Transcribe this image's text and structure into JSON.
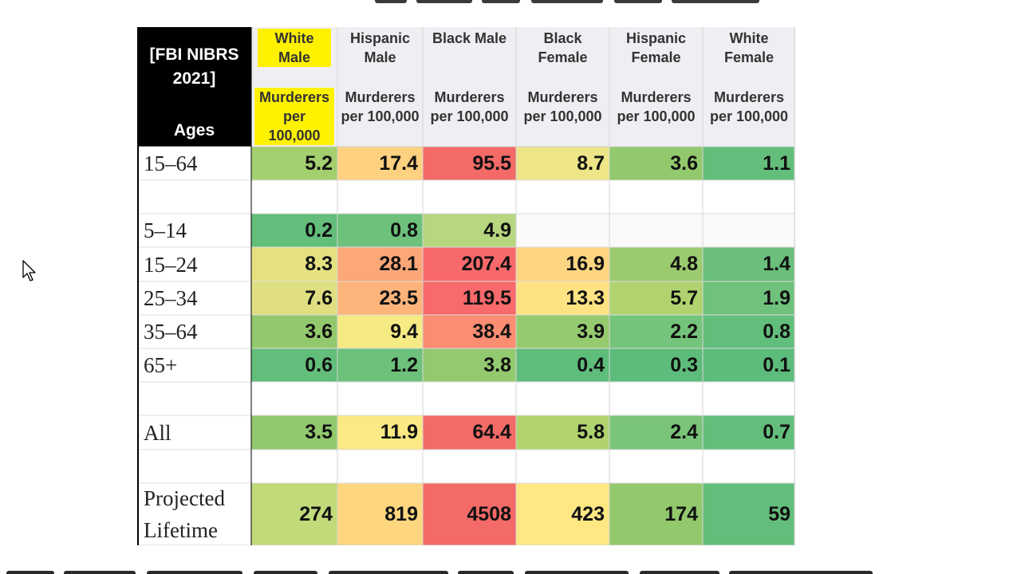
{
  "chart_data": {
    "type": "heatmap",
    "corner_label": "[FBI NIBRS 2021]",
    "row_header_label": "Ages",
    "columns": [
      {
        "group": "White Male",
        "metric": "Murderers per 100,000",
        "highlighted": true
      },
      {
        "group": "Hispanic Male",
        "metric": "Murderers per 100,000",
        "highlighted": false
      },
      {
        "group": "Black Male",
        "metric": "Murderers per 100,000",
        "highlighted": false
      },
      {
        "group": "Black Female",
        "metric": "Murderers per 100,000",
        "highlighted": false
      },
      {
        "group": "Hispanic Female",
        "metric": "Murderers per 100,000",
        "highlighted": false
      },
      {
        "group": "White Female",
        "metric": "Murderers per 100,000",
        "highlighted": false
      }
    ],
    "rows": [
      {
        "label": "15–64",
        "values": [
          "5.2",
          "17.4",
          "95.5",
          "8.7",
          "3.6",
          "1.1"
        ],
        "colors": [
          "#a3cf6f",
          "#fdd17f",
          "#f36a67",
          "#ede587",
          "#93c96d",
          "#63be7b"
        ]
      },
      {
        "label": "",
        "values": [],
        "colors": []
      },
      {
        "label": "5–14",
        "values": [
          "0.2",
          "0.8",
          "4.9"
        ],
        "colors": [
          "#63be7b",
          "#6dc17a",
          "#b6d77f"
        ]
      },
      {
        "label": "15–24",
        "values": [
          "8.3",
          "28.1",
          "207.4",
          "16.9",
          "4.8",
          "1.4"
        ],
        "colors": [
          "#e5e181",
          "#fba777",
          "#f8696b",
          "#fed580",
          "#9bcb6e",
          "#69bf7b"
        ]
      },
      {
        "label": "25–34",
        "values": [
          "7.6",
          "23.5",
          "119.5",
          "13.3",
          "5.7",
          "1.9"
        ],
        "colors": [
          "#dfdf82",
          "#fcb47a",
          "#f86a6b",
          "#ffe383",
          "#b0d36f",
          "#6fc17b"
        ]
      },
      {
        "label": "35–64",
        "values": [
          "3.6",
          "9.4",
          "38.4",
          "3.9",
          "2.2",
          "0.8"
        ],
        "colors": [
          "#93c96d",
          "#f6ea84",
          "#fa8d72",
          "#96ca6f",
          "#75c47b",
          "#62be7b"
        ]
      },
      {
        "label": "65+",
        "values": [
          "0.6",
          "1.2",
          "3.8",
          "0.4",
          "0.3",
          "0.1"
        ],
        "colors": [
          "#63be7b",
          "#6dc17b",
          "#93c96f",
          "#5fbd7b",
          "#5dbc7b",
          "#5cbc7b"
        ]
      },
      {
        "label": "",
        "values": [],
        "colors": []
      },
      {
        "label": "All",
        "values": [
          "3.5",
          "11.9",
          "64.4",
          "5.8",
          "2.4",
          "0.7"
        ],
        "colors": [
          "#91c96d",
          "#fbe983",
          "#f36b67",
          "#b0d36f",
          "#7ac47a",
          "#64be7b"
        ]
      },
      {
        "label": "",
        "values": [],
        "colors": []
      },
      {
        "label": "Projected Lifetime",
        "values": [
          "274",
          "819",
          "4508",
          "423",
          "174",
          "59"
        ],
        "colors": [
          "#c1da7a",
          "#fdd67f",
          "#f36a67",
          "#ffe784",
          "#93c96d",
          "#63be7b"
        ]
      }
    ],
    "grid": true,
    "legend": "none"
  }
}
